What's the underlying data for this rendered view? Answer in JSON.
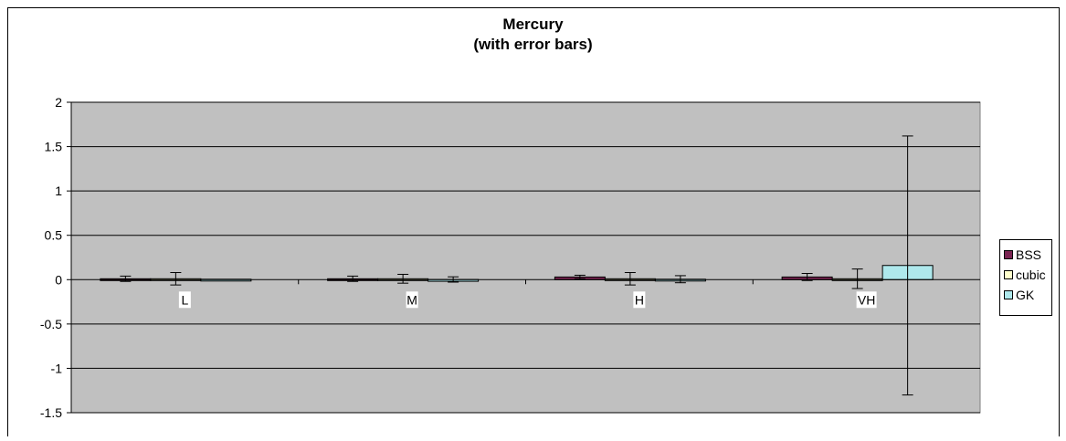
{
  "chart_data": {
    "type": "bar",
    "title": "Mercury",
    "subtitle": "(with error bars)",
    "categories": [
      "L",
      "M",
      "H",
      "VH"
    ],
    "ylim": [
      -1.5,
      2
    ],
    "yticks": [
      2,
      1.5,
      1,
      0.5,
      0,
      -0.5,
      -1,
      -1.5
    ],
    "ytick_labels": [
      "2",
      "1.5",
      "1",
      "0.5",
      "0",
      "-0.5",
      "-1",
      "-1.5"
    ],
    "grid": true,
    "legend_position": "right",
    "series": [
      {
        "name": "BSS",
        "color": "#7a2452",
        "values": [
          0.01,
          0.01,
          0.03,
          0.03
        ],
        "error": [
          0.03,
          0.03,
          0.02,
          0.04
        ]
      },
      {
        "name": "cubic",
        "color": "#ffffcc",
        "values": [
          0.01,
          0.01,
          0.01,
          0.01
        ],
        "error": [
          0.07,
          0.05,
          0.07,
          0.11
        ]
      },
      {
        "name": "GK",
        "color": "#aee8ec",
        "values": [
          0.005,
          0.002,
          0.005,
          0.16
        ],
        "error": [
          0.0,
          0.03,
          0.04,
          1.46
        ]
      }
    ]
  }
}
